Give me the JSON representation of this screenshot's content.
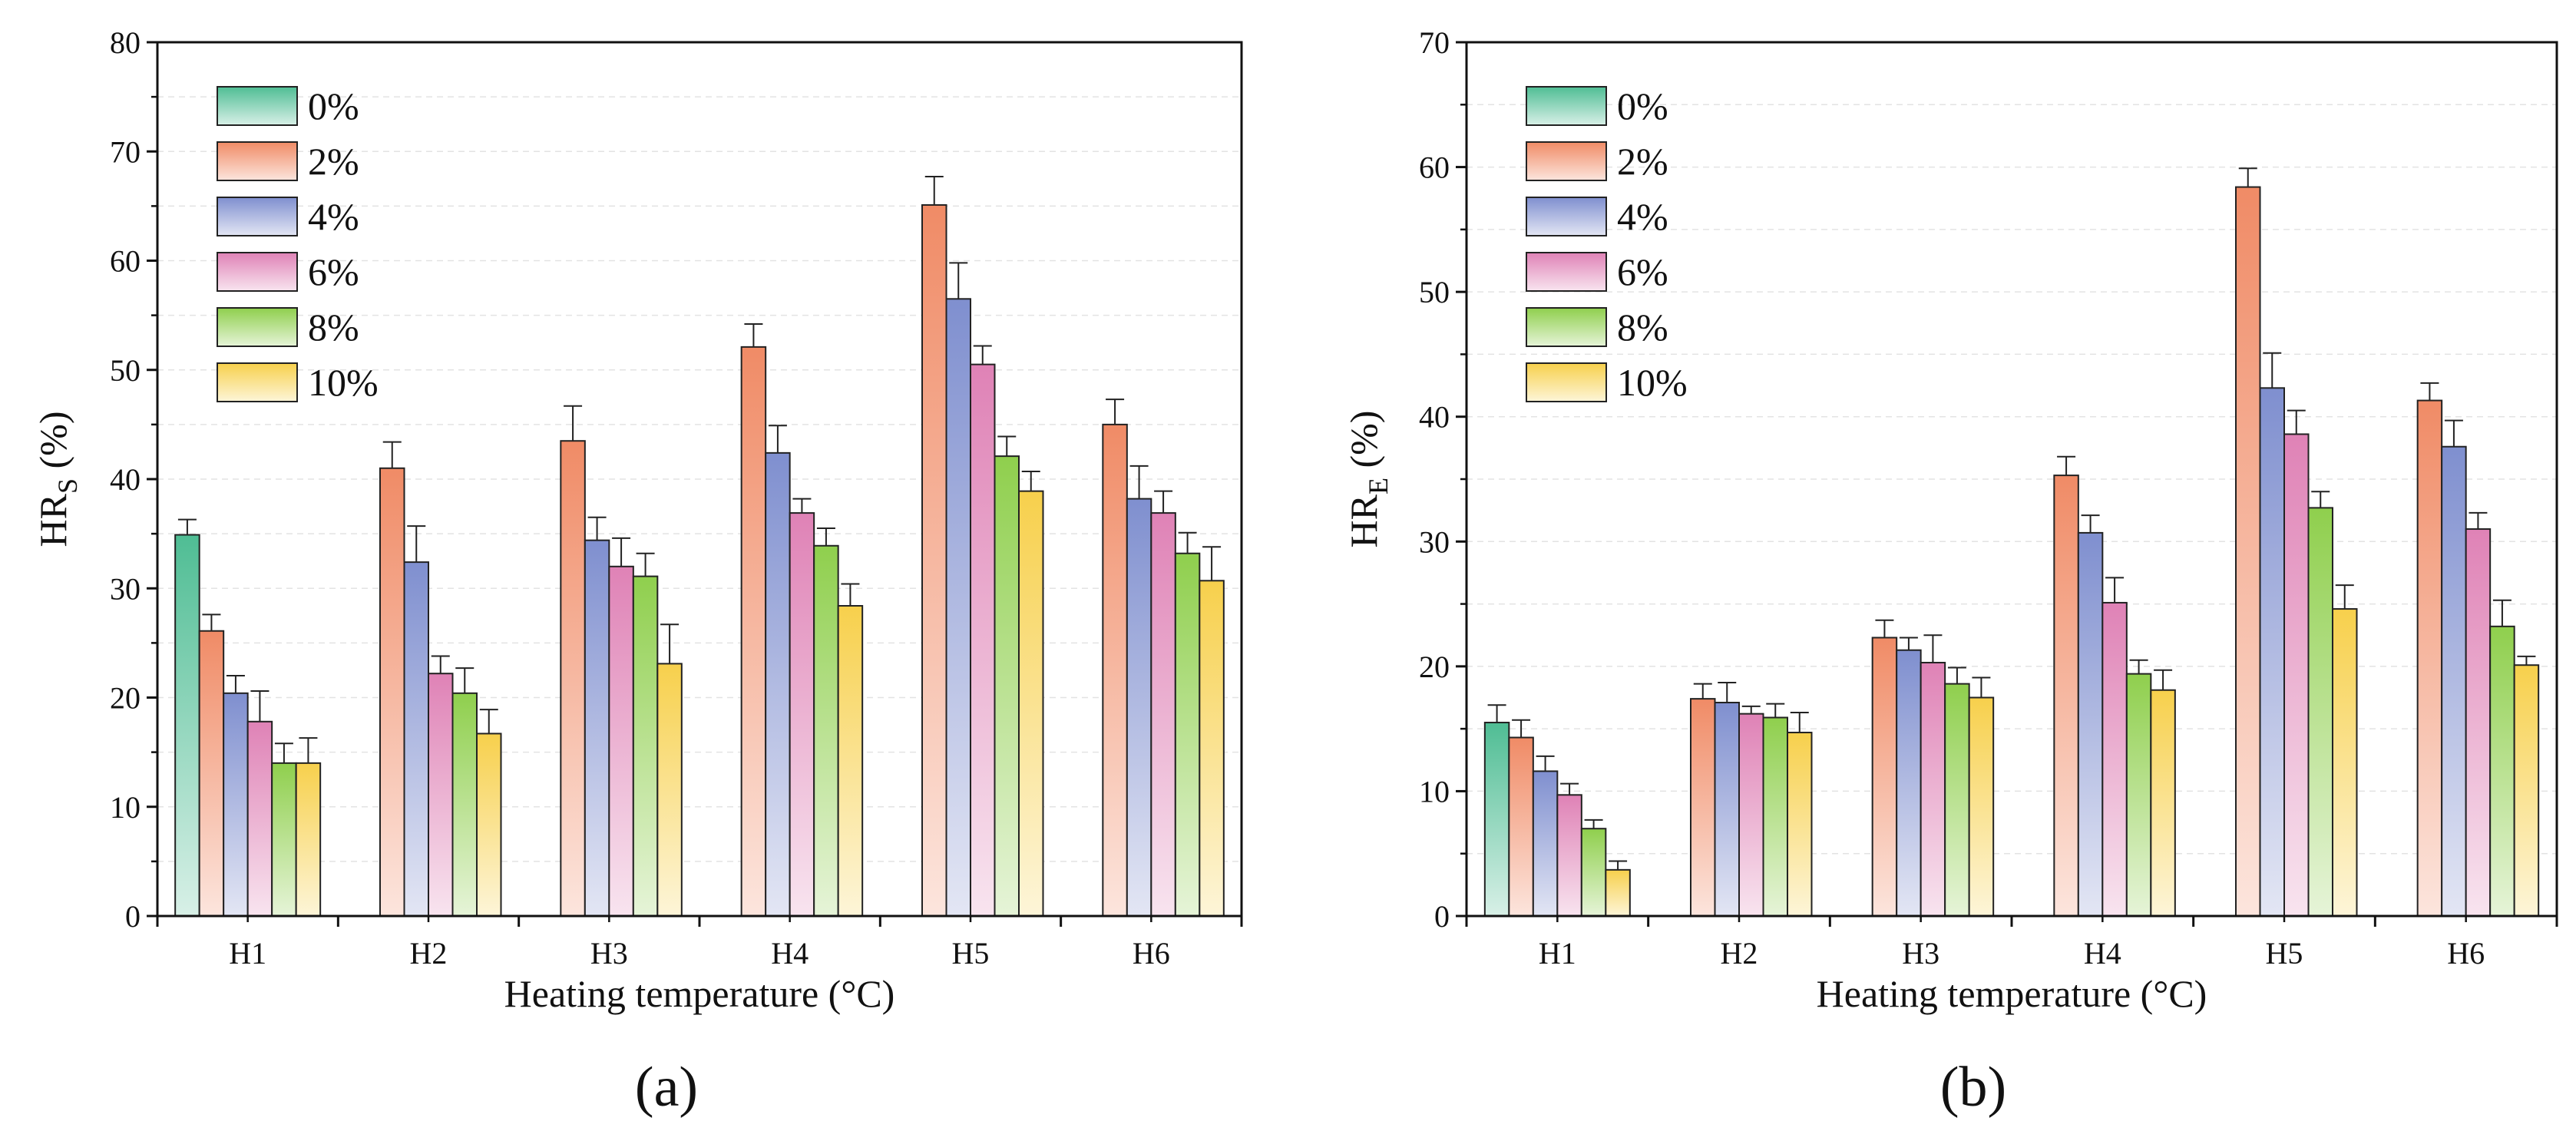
{
  "figure": {
    "legend_title": "",
    "colors": {
      "0%": "#4fbd94",
      "2%": "#f08b66",
      "4%": "#7f8fcf",
      "6%": "#df82b6",
      "8%": "#8fcf4d",
      "10%": "#f7d04c"
    }
  },
  "chart_data": [
    {
      "type": "bar",
      "panel_label": "(a)",
      "title": "",
      "xlabel": "Heating temperature (°C)",
      "ylabel": "HR",
      "ylabel_sub": "S",
      "ylabel_suffix": " (%)",
      "ylim": [
        0,
        80
      ],
      "yticks": [
        "0",
        "10",
        "20",
        "30",
        "40",
        "50",
        "60",
        "70",
        "80"
      ],
      "categories": [
        "H1",
        "H2",
        "H3",
        "H4",
        "H5",
        "H6"
      ],
      "legend": "top-left",
      "series": [
        {
          "name": "0%",
          "values": [
            34.9,
            null,
            null,
            null,
            null,
            null
          ],
          "errors": [
            1.4,
            null,
            null,
            null,
            null,
            null
          ]
        },
        {
          "name": "2%",
          "values": [
            26.1,
            41.0,
            43.5,
            52.1,
            65.1,
            45.0
          ],
          "errors": [
            1.5,
            2.4,
            3.2,
            2.1,
            2.6,
            2.3
          ]
        },
        {
          "name": "4%",
          "values": [
            20.4,
            32.4,
            34.4,
            42.4,
            56.5,
            38.2
          ],
          "errors": [
            1.6,
            3.3,
            2.1,
            2.5,
            3.3,
            3.0
          ]
        },
        {
          "name": "6%",
          "values": [
            17.8,
            22.2,
            32.0,
            36.9,
            50.5,
            36.9
          ],
          "errors": [
            2.8,
            1.6,
            2.6,
            1.3,
            1.7,
            2.0
          ]
        },
        {
          "name": "8%",
          "values": [
            14.0,
            20.4,
            31.1,
            33.9,
            42.1,
            33.2
          ],
          "errors": [
            1.8,
            2.3,
            2.1,
            1.6,
            1.8,
            1.9
          ]
        },
        {
          "name": "10%",
          "values": [
            14.0,
            16.7,
            23.1,
            28.4,
            38.9,
            30.7
          ],
          "errors": [
            2.3,
            2.2,
            3.6,
            2.0,
            1.8,
            3.1
          ]
        }
      ]
    },
    {
      "type": "bar",
      "panel_label": "(b)",
      "title": "",
      "xlabel": "Heating temperature (°C)",
      "ylabel": "HR",
      "ylabel_sub": "E",
      "ylabel_suffix": " (%)",
      "ylim": [
        0,
        70
      ],
      "yticks": [
        "0",
        "10",
        "20",
        "30",
        "40",
        "50",
        "60",
        "70"
      ],
      "categories": [
        "H1",
        "H2",
        "H3",
        "H4",
        "H5",
        "H6"
      ],
      "legend": "top-left",
      "series": [
        {
          "name": "0%",
          "values": [
            15.5,
            null,
            null,
            null,
            null,
            null
          ],
          "errors": [
            1.4,
            null,
            null,
            null,
            null,
            null
          ]
        },
        {
          "name": "2%",
          "values": [
            14.3,
            17.4,
            22.3,
            35.3,
            58.4,
            41.3
          ],
          "errors": [
            1.4,
            1.2,
            1.4,
            1.5,
            1.5,
            1.4
          ]
        },
        {
          "name": "4%",
          "values": [
            11.6,
            17.1,
            21.3,
            30.7,
            42.3,
            37.6
          ],
          "errors": [
            1.2,
            1.6,
            1.0,
            1.4,
            2.8,
            2.1
          ]
        },
        {
          "name": "6%",
          "values": [
            9.7,
            16.2,
            20.3,
            25.1,
            38.6,
            31.0
          ],
          "errors": [
            0.9,
            0.6,
            2.2,
            2.0,
            1.9,
            1.3
          ]
        },
        {
          "name": "8%",
          "values": [
            7.0,
            15.9,
            18.6,
            19.4,
            32.7,
            23.2
          ],
          "errors": [
            0.7,
            1.1,
            1.3,
            1.1,
            1.3,
            2.1
          ]
        },
        {
          "name": "10%",
          "values": [
            3.7,
            14.7,
            17.5,
            18.1,
            24.6,
            20.1
          ],
          "errors": [
            0.7,
            1.6,
            1.6,
            1.6,
            1.9,
            0.7
          ]
        }
      ]
    }
  ]
}
